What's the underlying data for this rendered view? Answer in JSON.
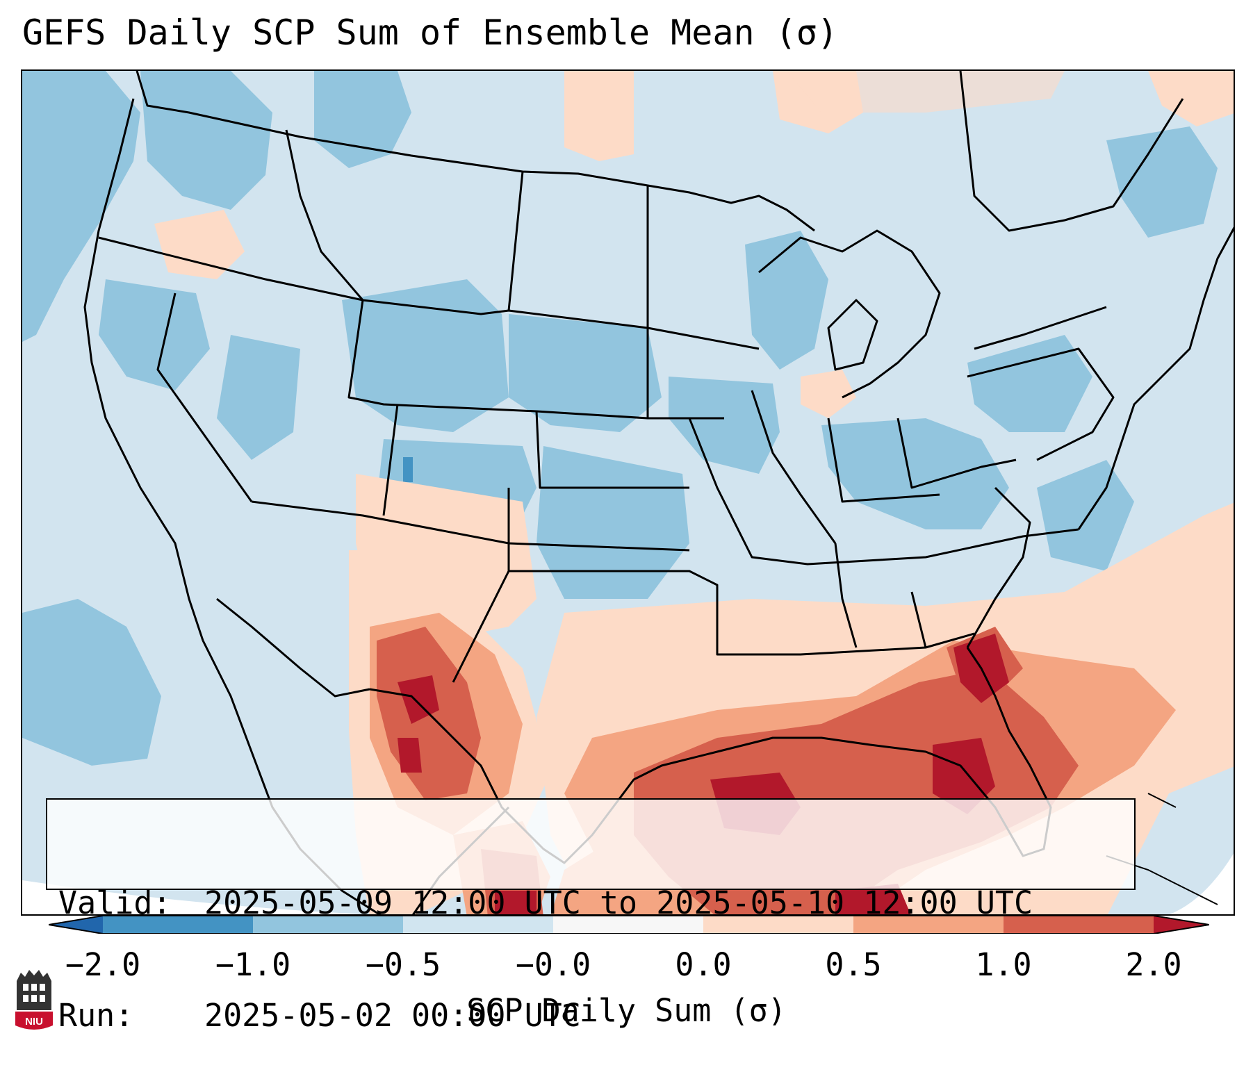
{
  "title": "GEFS Daily SCP Sum of Ensemble Mean (σ)",
  "info": {
    "valid_label": "Valid:",
    "valid_value": "2025-05-09 12:00 UTC to 2025-05-10 12:00 UTC",
    "run_label": "Run:",
    "run_value": "2025-05-02 00:00 UTC"
  },
  "colorbar": {
    "label": "SCP Daily Sum (σ)",
    "ticks": [
      "−2.0",
      "−1.0",
      "−0.5",
      "−0.0",
      "0.0",
      "0.5",
      "1.0",
      "2.0"
    ],
    "colors": {
      "under": "#2166ac",
      "bin_m2_m1": "#4393c3",
      "bin_m1_m05": "#92c5de",
      "bin_m05_m0": "#d1e5f0",
      "bin_zero": "#f7f7f7",
      "bin_0_05": "#fddbc7",
      "bin_05_1": "#f4a582",
      "bin_1_2": "#d6604d",
      "over": "#b2182b"
    }
  },
  "map": {
    "projection": "lambert-conformal",
    "region": "CONUS",
    "background_color": "#d2e4ef",
    "state_line_color": "#000000"
  },
  "logo": {
    "text": "NIU",
    "colors": {
      "tower": "#333333",
      "shield": "#c8102e"
    }
  }
}
